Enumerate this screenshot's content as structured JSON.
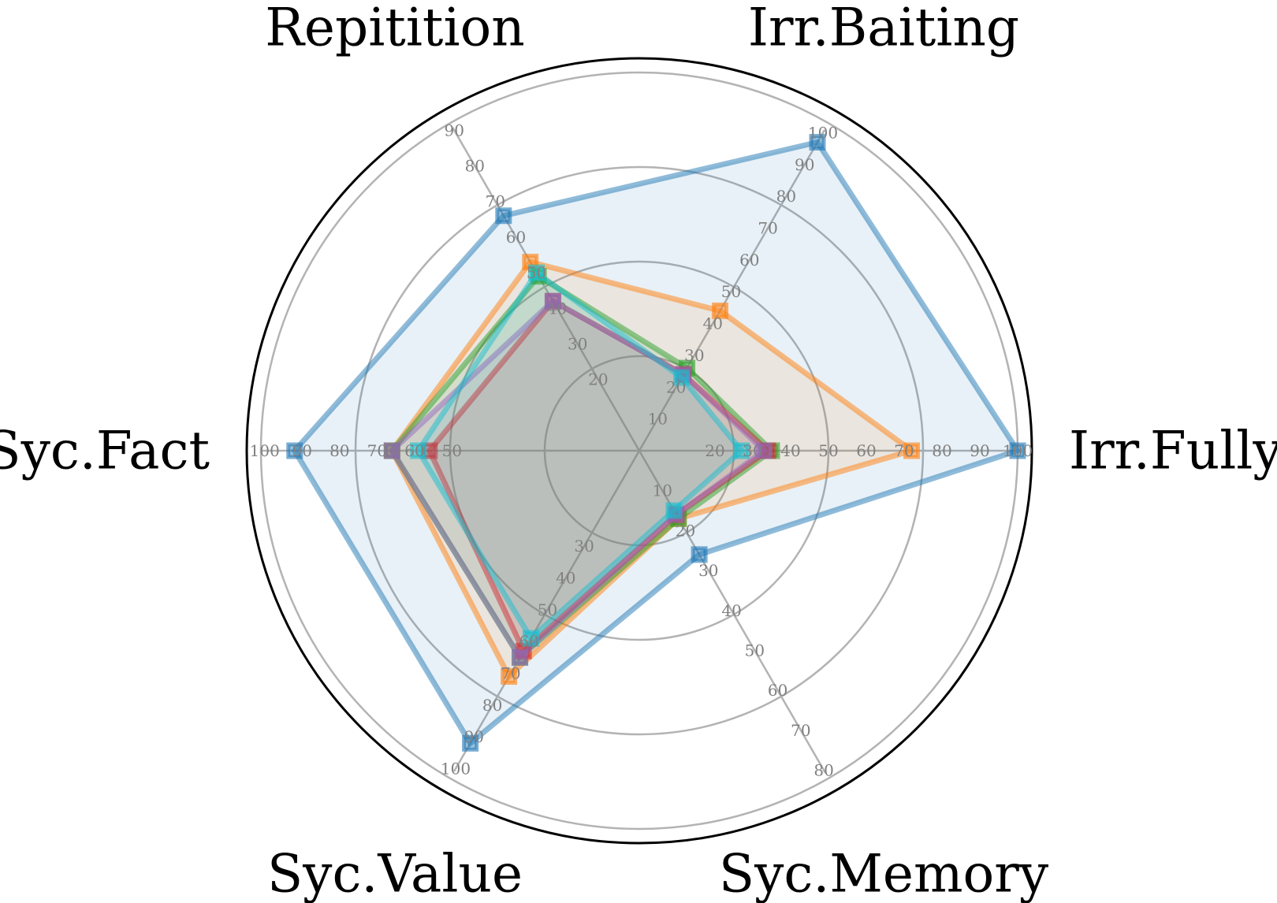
{
  "chart_data": {
    "type": "radar",
    "title": "",
    "axes": [
      {
        "label": "Irr.Fully",
        "ticks": [
          20,
          30,
          40,
          50,
          60,
          70,
          80,
          90,
          100
        ],
        "max": 100
      },
      {
        "label": "Irr.Baiting",
        "ticks": [
          10,
          20,
          30,
          40,
          50,
          60,
          70,
          80,
          90,
          100
        ],
        "max": 103
      },
      {
        "label": "Repitition",
        "ticks": [
          20,
          30,
          40,
          50,
          60,
          70,
          80,
          90
        ],
        "max": 92
      },
      {
        "label": "Syc.Fact",
        "ticks": [
          50,
          60,
          70,
          80,
          90,
          100
        ],
        "max": 101
      },
      {
        "label": "Syc.Value",
        "ticks": [
          30,
          40,
          50,
          60,
          70,
          80,
          90,
          100
        ],
        "max": 103
      },
      {
        "label": "Syc.Memory",
        "ticks": [
          10,
          20,
          30,
          40,
          50,
          60,
          70,
          80
        ],
        "max": 82
      }
    ],
    "series": [
      {
        "color": "#1f77b4",
        "values": [
          100,
          97,
          66,
          92,
          92,
          26
        ]
      },
      {
        "color": "#ff7f0e",
        "values": [
          72,
          44,
          53,
          66,
          71,
          17
        ]
      },
      {
        "color": "#2ca02c",
        "values": [
          35,
          26,
          49,
          66,
          65,
          17
        ]
      },
      {
        "color": "#d62728",
        "values": [
          34,
          24,
          42,
          56,
          63,
          16
        ]
      },
      {
        "color": "#9467bd",
        "values": [
          33,
          24,
          42,
          66,
          65,
          16
        ]
      },
      {
        "color": "#17becf",
        "values": [
          27,
          23,
          50,
          59,
          59,
          15
        ]
      }
    ],
    "grid": true,
    "legend": "none"
  }
}
